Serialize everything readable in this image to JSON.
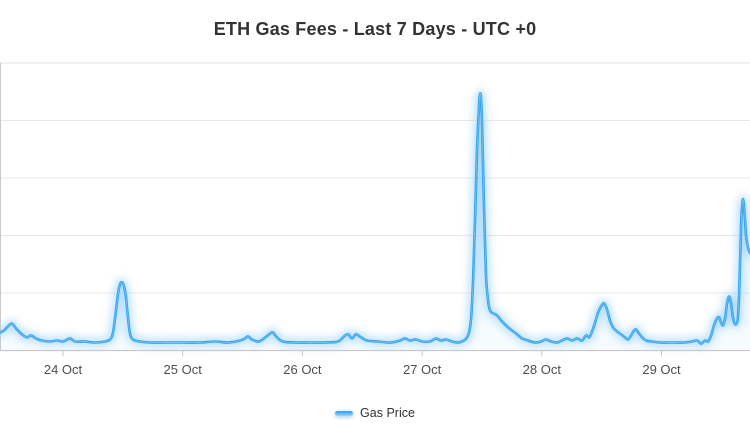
{
  "title": "ETH Gas Fees - Last 7 Days - UTC +0",
  "x_axis": {
    "tick_labels": [
      "24 Oct",
      "25 Oct",
      "26 Oct",
      "27 Oct",
      "28 Oct",
      "29 Oct"
    ]
  },
  "colors": {
    "line": "#32a1ef",
    "line_glow": "#8fccf8",
    "area_fill_top": "rgba(125,197,248,0.35)",
    "area_fill_bottom": "rgba(190,227,251,0.12)",
    "grid": "#e8e8e8",
    "plot_top_border": "#e2e2e2",
    "axis_line": "#c9c9c9",
    "title_text": "#333333",
    "tick_text": "#4d4d4d",
    "legend_text": "#333333"
  },
  "chart_data": {
    "type": "line",
    "style": "smooth glow line with soft area fill",
    "title": "ETH Gas Fees - Last 7 Days - UTC +0",
    "xlabel": "",
    "ylabel": "",
    "x_unit": "date in October (UTC+0), fractional days",
    "y_unit": "relative gas price (no y-axis labels shown; 100 = tallest spike at 27.5 Oct)",
    "x_ticks": [
      24,
      25,
      26,
      27,
      28,
      29
    ],
    "x_range": [
      23.47,
      29.74
    ],
    "y_range": [
      0,
      105
    ],
    "grid": "horizontal gridlines only, 5 bands",
    "legend_position": "bottom-center",
    "series": [
      {
        "name": "Gas Price",
        "color": "#32a1ef",
        "points": [
          [
            23.474,
            7.0
          ],
          [
            23.507,
            7.8
          ],
          [
            23.54,
            9.4
          ],
          [
            23.574,
            10.5
          ],
          [
            23.607,
            8.6
          ],
          [
            23.657,
            6.3
          ],
          [
            23.699,
            5.1
          ],
          [
            23.733,
            5.9
          ],
          [
            23.774,
            4.7
          ],
          [
            23.825,
            3.9
          ],
          [
            23.891,
            3.5
          ],
          [
            23.95,
            3.9
          ],
          [
            24.0,
            3.5
          ],
          [
            24.058,
            4.7
          ],
          [
            24.1,
            3.5
          ],
          [
            24.184,
            3.5
          ],
          [
            24.267,
            3.1
          ],
          [
            24.351,
            3.5
          ],
          [
            24.393,
            4.3
          ],
          [
            24.418,
            7.0
          ],
          [
            24.443,
            15.6
          ],
          [
            24.46,
            22.3
          ],
          [
            24.476,
            25.8
          ],
          [
            24.493,
            26.6
          ],
          [
            24.51,
            25.0
          ],
          [
            24.526,
            20.7
          ],
          [
            24.543,
            12.9
          ],
          [
            24.56,
            6.6
          ],
          [
            24.585,
            4.3
          ],
          [
            24.643,
            3.5
          ],
          [
            24.727,
            3.1
          ],
          [
            24.852,
            3.1
          ],
          [
            25.0,
            3.1
          ],
          [
            25.145,
            3.1
          ],
          [
            25.27,
            3.5
          ],
          [
            25.378,
            3.1
          ],
          [
            25.479,
            3.9
          ],
          [
            25.52,
            4.7
          ],
          [
            25.545,
            5.5
          ],
          [
            25.579,
            4.3
          ],
          [
            25.629,
            3.5
          ],
          [
            25.679,
            4.7
          ],
          [
            25.729,
            6.6
          ],
          [
            25.754,
            7.0
          ],
          [
            25.788,
            5.1
          ],
          [
            25.838,
            3.5
          ],
          [
            25.938,
            3.1
          ],
          [
            26.064,
            3.1
          ],
          [
            26.189,
            3.1
          ],
          [
            26.297,
            3.5
          ],
          [
            26.348,
            5.5
          ],
          [
            26.381,
            6.3
          ],
          [
            26.415,
            4.7
          ],
          [
            26.448,
            6.3
          ],
          [
            26.49,
            5.1
          ],
          [
            26.54,
            3.9
          ],
          [
            26.632,
            3.5
          ],
          [
            26.732,
            3.1
          ],
          [
            26.816,
            3.9
          ],
          [
            26.857,
            4.7
          ],
          [
            26.899,
            3.9
          ],
          [
            26.949,
            4.3
          ],
          [
            27.0,
            3.5
          ],
          [
            27.066,
            3.5
          ],
          [
            27.116,
            4.7
          ],
          [
            27.158,
            3.9
          ],
          [
            27.2,
            4.3
          ],
          [
            27.25,
            3.5
          ],
          [
            27.3,
            3.1
          ],
          [
            27.35,
            3.9
          ],
          [
            27.375,
            5.1
          ],
          [
            27.392,
            7.0
          ],
          [
            27.409,
            12.5
          ],
          [
            27.426,
            27.3
          ],
          [
            27.442,
            50.8
          ],
          [
            27.459,
            78.1
          ],
          [
            27.476,
            95.7
          ],
          [
            27.484,
            100.0
          ],
          [
            27.492,
            98.4
          ],
          [
            27.501,
            87.9
          ],
          [
            27.518,
            54.7
          ],
          [
            27.534,
            29.3
          ],
          [
            27.551,
            19.5
          ],
          [
            27.568,
            15.6
          ],
          [
            27.593,
            14.5
          ],
          [
            27.626,
            13.7
          ],
          [
            27.668,
            11.3
          ],
          [
            27.71,
            9.4
          ],
          [
            27.751,
            7.8
          ],
          [
            27.793,
            6.3
          ],
          [
            27.835,
            4.7
          ],
          [
            27.885,
            3.9
          ],
          [
            27.944,
            3.1
          ],
          [
            27.994,
            3.5
          ],
          [
            28.035,
            4.3
          ],
          [
            28.077,
            3.5
          ],
          [
            28.127,
            3.1
          ],
          [
            28.169,
            3.9
          ],
          [
            28.211,
            4.7
          ],
          [
            28.253,
            3.9
          ],
          [
            28.295,
            4.7
          ],
          [
            28.336,
            3.9
          ],
          [
            28.37,
            5.9
          ],
          [
            28.395,
            5.1
          ],
          [
            28.42,
            7.4
          ],
          [
            28.445,
            10.9
          ],
          [
            28.47,
            14.8
          ],
          [
            28.495,
            17.2
          ],
          [
            28.52,
            18.4
          ],
          [
            28.545,
            16.0
          ],
          [
            28.57,
            11.7
          ],
          [
            28.595,
            9.0
          ],
          [
            28.629,
            7.4
          ],
          [
            28.662,
            6.3
          ],
          [
            28.696,
            5.1
          ],
          [
            28.721,
            4.3
          ],
          [
            28.746,
            5.9
          ],
          [
            28.771,
            7.8
          ],
          [
            28.787,
            8.2
          ],
          [
            28.813,
            6.6
          ],
          [
            28.838,
            5.1
          ],
          [
            28.871,
            3.9
          ],
          [
            28.921,
            3.5
          ],
          [
            28.988,
            3.1
          ],
          [
            29.055,
            3.1
          ],
          [
            29.122,
            3.1
          ],
          [
            29.189,
            3.1
          ],
          [
            29.255,
            3.5
          ],
          [
            29.297,
            3.9
          ],
          [
            29.331,
            2.7
          ],
          [
            29.364,
            3.9
          ],
          [
            29.389,
            3.5
          ],
          [
            29.414,
            5.9
          ],
          [
            29.439,
            9.8
          ],
          [
            29.464,
            12.5
          ],
          [
            29.481,
            12.9
          ],
          [
            29.498,
            10.9
          ],
          [
            29.514,
            9.8
          ],
          [
            29.531,
            12.5
          ],
          [
            29.548,
            18.4
          ],
          [
            29.565,
            21.1
          ],
          [
            29.581,
            18.4
          ],
          [
            29.598,
            12.5
          ],
          [
            29.615,
            10.2
          ],
          [
            29.632,
            10.9
          ],
          [
            29.64,
            13.7
          ],
          [
            29.648,
            21.5
          ],
          [
            29.657,
            35.2
          ],
          [
            29.665,
            48.8
          ],
          [
            29.674,
            56.6
          ],
          [
            29.682,
            59.0
          ],
          [
            29.69,
            55.9
          ],
          [
            29.699,
            50.0
          ],
          [
            29.707,
            44.5
          ],
          [
            29.724,
            39.8
          ],
          [
            29.741,
            37.9
          ]
        ]
      }
    ]
  }
}
